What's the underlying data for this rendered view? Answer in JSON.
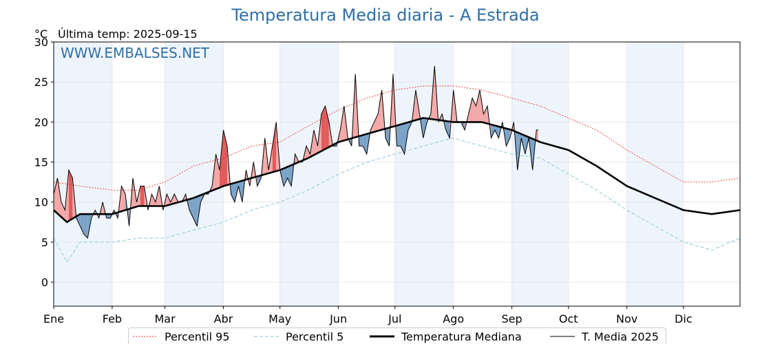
{
  "title": "Temperatura Media diaria - A Estrada",
  "unit_label": "°C",
  "last_temp_label": "Última temp: 2025-09-15",
  "watermark": "WWW.EMBALSES.NET",
  "colors": {
    "p95": "#e8312a",
    "p5": "#9ecfe0",
    "median": "#000000",
    "media2025": "#000000",
    "above_fill": "#f4a8a8",
    "above_strong": "#e35b5b",
    "below_fill": "#7aa3c8",
    "band": "#eef4fb",
    "title": "#2f6fa6"
  },
  "chart_data": {
    "type": "line",
    "title": "Temperatura Media diaria - A Estrada",
    "ylabel": "°C",
    "xlabel": "",
    "ylim": [
      -3,
      30
    ],
    "xlim": [
      1,
      365
    ],
    "yticks": [
      0,
      5,
      10,
      15,
      20,
      25,
      30
    ],
    "month_ticks": [
      {
        "label": "Ene",
        "day": 1
      },
      {
        "label": "Feb",
        "day": 32
      },
      {
        "label": "Mar",
        "day": 60
      },
      {
        "label": "Abr",
        "day": 91
      },
      {
        "label": "May",
        "day": 121
      },
      {
        "label": "Jun",
        "day": 152
      },
      {
        "label": "Jul",
        "day": 182
      },
      {
        "label": "Ago",
        "day": 213
      },
      {
        "label": "Sep",
        "day": 244
      },
      {
        "label": "Oct",
        "day": 274
      },
      {
        "label": "Nov",
        "day": 305
      },
      {
        "label": "Dic",
        "day": 335
      }
    ],
    "grid": true,
    "legend_position": "bottom-center",
    "series": [
      {
        "name": "Percentil 95",
        "style": "dotted",
        "x": [
          1,
          15,
          32,
          46,
          60,
          75,
          91,
          106,
          121,
          136,
          152,
          167,
          182,
          197,
          213,
          228,
          244,
          259,
          274,
          289,
          305,
          320,
          335,
          350,
          365
        ],
        "y": [
          12.5,
          12.0,
          11.5,
          11.5,
          12.5,
          14.5,
          15.5,
          17.0,
          17.5,
          19.5,
          21.5,
          23.0,
          24.0,
          24.5,
          24.5,
          24.0,
          23.0,
          22.0,
          20.5,
          19.0,
          16.5,
          14.5,
          12.5,
          12.5,
          13.0
        ]
      },
      {
        "name": "Percentil 5",
        "style": "dashed",
        "x": [
          1,
          8,
          15,
          32,
          46,
          60,
          75,
          91,
          106,
          121,
          136,
          152,
          167,
          182,
          197,
          213,
          228,
          244,
          259,
          274,
          289,
          305,
          320,
          335,
          350,
          365
        ],
        "y": [
          5.5,
          2.5,
          5.0,
          5.0,
          5.5,
          5.5,
          6.5,
          7.5,
          9.0,
          10.0,
          11.5,
          13.5,
          15.0,
          16.0,
          17.0,
          18.0,
          17.0,
          16.0,
          15.5,
          13.5,
          11.5,
          9.0,
          7.0,
          5.0,
          4.0,
          5.5
        ]
      },
      {
        "name": "Temperatura Mediana",
        "style": "thick",
        "x": [
          1,
          8,
          15,
          32,
          46,
          60,
          75,
          91,
          106,
          121,
          136,
          152,
          167,
          182,
          197,
          213,
          228,
          244,
          259,
          274,
          289,
          305,
          320,
          335,
          350,
          365
        ],
        "y": [
          9.0,
          7.5,
          8.5,
          8.5,
          9.5,
          9.5,
          10.5,
          12.0,
          13.0,
          14.0,
          15.5,
          17.5,
          18.5,
          19.5,
          20.5,
          20.0,
          20.0,
          19.0,
          17.5,
          16.5,
          14.5,
          12.0,
          10.5,
          9.0,
          8.5,
          9.0
        ]
      },
      {
        "name": "T. Media 2025",
        "style": "thin",
        "x": [
          1,
          3,
          5,
          7,
          9,
          11,
          13,
          15,
          17,
          19,
          21,
          23,
          25,
          27,
          29,
          31,
          33,
          35,
          37,
          39,
          41,
          43,
          45,
          47,
          49,
          51,
          53,
          55,
          57,
          59,
          61,
          63,
          65,
          67,
          69,
          71,
          73,
          75,
          77,
          79,
          81,
          83,
          85,
          87,
          89,
          91,
          93,
          95,
          97,
          99,
          101,
          103,
          105,
          107,
          109,
          111,
          113,
          115,
          117,
          119,
          121,
          123,
          125,
          127,
          129,
          131,
          133,
          135,
          137,
          139,
          141,
          143,
          145,
          147,
          149,
          151,
          153,
          155,
          157,
          159,
          161,
          163,
          165,
          167,
          169,
          171,
          173,
          175,
          177,
          179,
          181,
          183,
          185,
          187,
          189,
          191,
          193,
          195,
          197,
          199,
          201,
          203,
          205,
          207,
          209,
          211,
          213,
          215,
          217,
          219,
          221,
          223,
          225,
          227,
          229,
          231,
          233,
          235,
          237,
          239,
          241,
          243,
          245,
          247,
          249,
          251,
          253,
          255,
          257,
          258
        ],
        "y": [
          11,
          13,
          10,
          9,
          14,
          13,
          8,
          7,
          6,
          5.5,
          8,
          9,
          8,
          10,
          8,
          8,
          9,
          8,
          12,
          11,
          7,
          13,
          10,
          12,
          12,
          9,
          11,
          10,
          12,
          9,
          11,
          10,
          11,
          10,
          10,
          11,
          9,
          8,
          7,
          10,
          11,
          11,
          12,
          16,
          14,
          19,
          17,
          11,
          10,
          12,
          10,
          14,
          12,
          15,
          12,
          13,
          18,
          14,
          17,
          20,
          14,
          12,
          13,
          12,
          16,
          15,
          15,
          17,
          16,
          19,
          17,
          21,
          22,
          20,
          17,
          17,
          19,
          22,
          18,
          17,
          26,
          17,
          17,
          16,
          19,
          20,
          21,
          24,
          18,
          17,
          26,
          17,
          17,
          16,
          19,
          20,
          24,
          21,
          18,
          20,
          21,
          27,
          20,
          21,
          19,
          18,
          24,
          20,
          20,
          19,
          21,
          23,
          22,
          24,
          21,
          22,
          18,
          19,
          18,
          20,
          17,
          18,
          20,
          14,
          18,
          16,
          18,
          14,
          19,
          19
        ]
      }
    ],
    "value_annotation": "Última temp: 2025-09-15"
  },
  "legend": [
    {
      "label": "Percentil 95",
      "style": "dotted",
      "color": "#e8312a"
    },
    {
      "label": "Percentil 5",
      "style": "dashed",
      "color": "#9ecfe0"
    },
    {
      "label": "Temperatura Mediana",
      "style": "thick",
      "color": "#000000"
    },
    {
      "label": "T. Media 2025",
      "style": "thin",
      "color": "#000000"
    }
  ]
}
